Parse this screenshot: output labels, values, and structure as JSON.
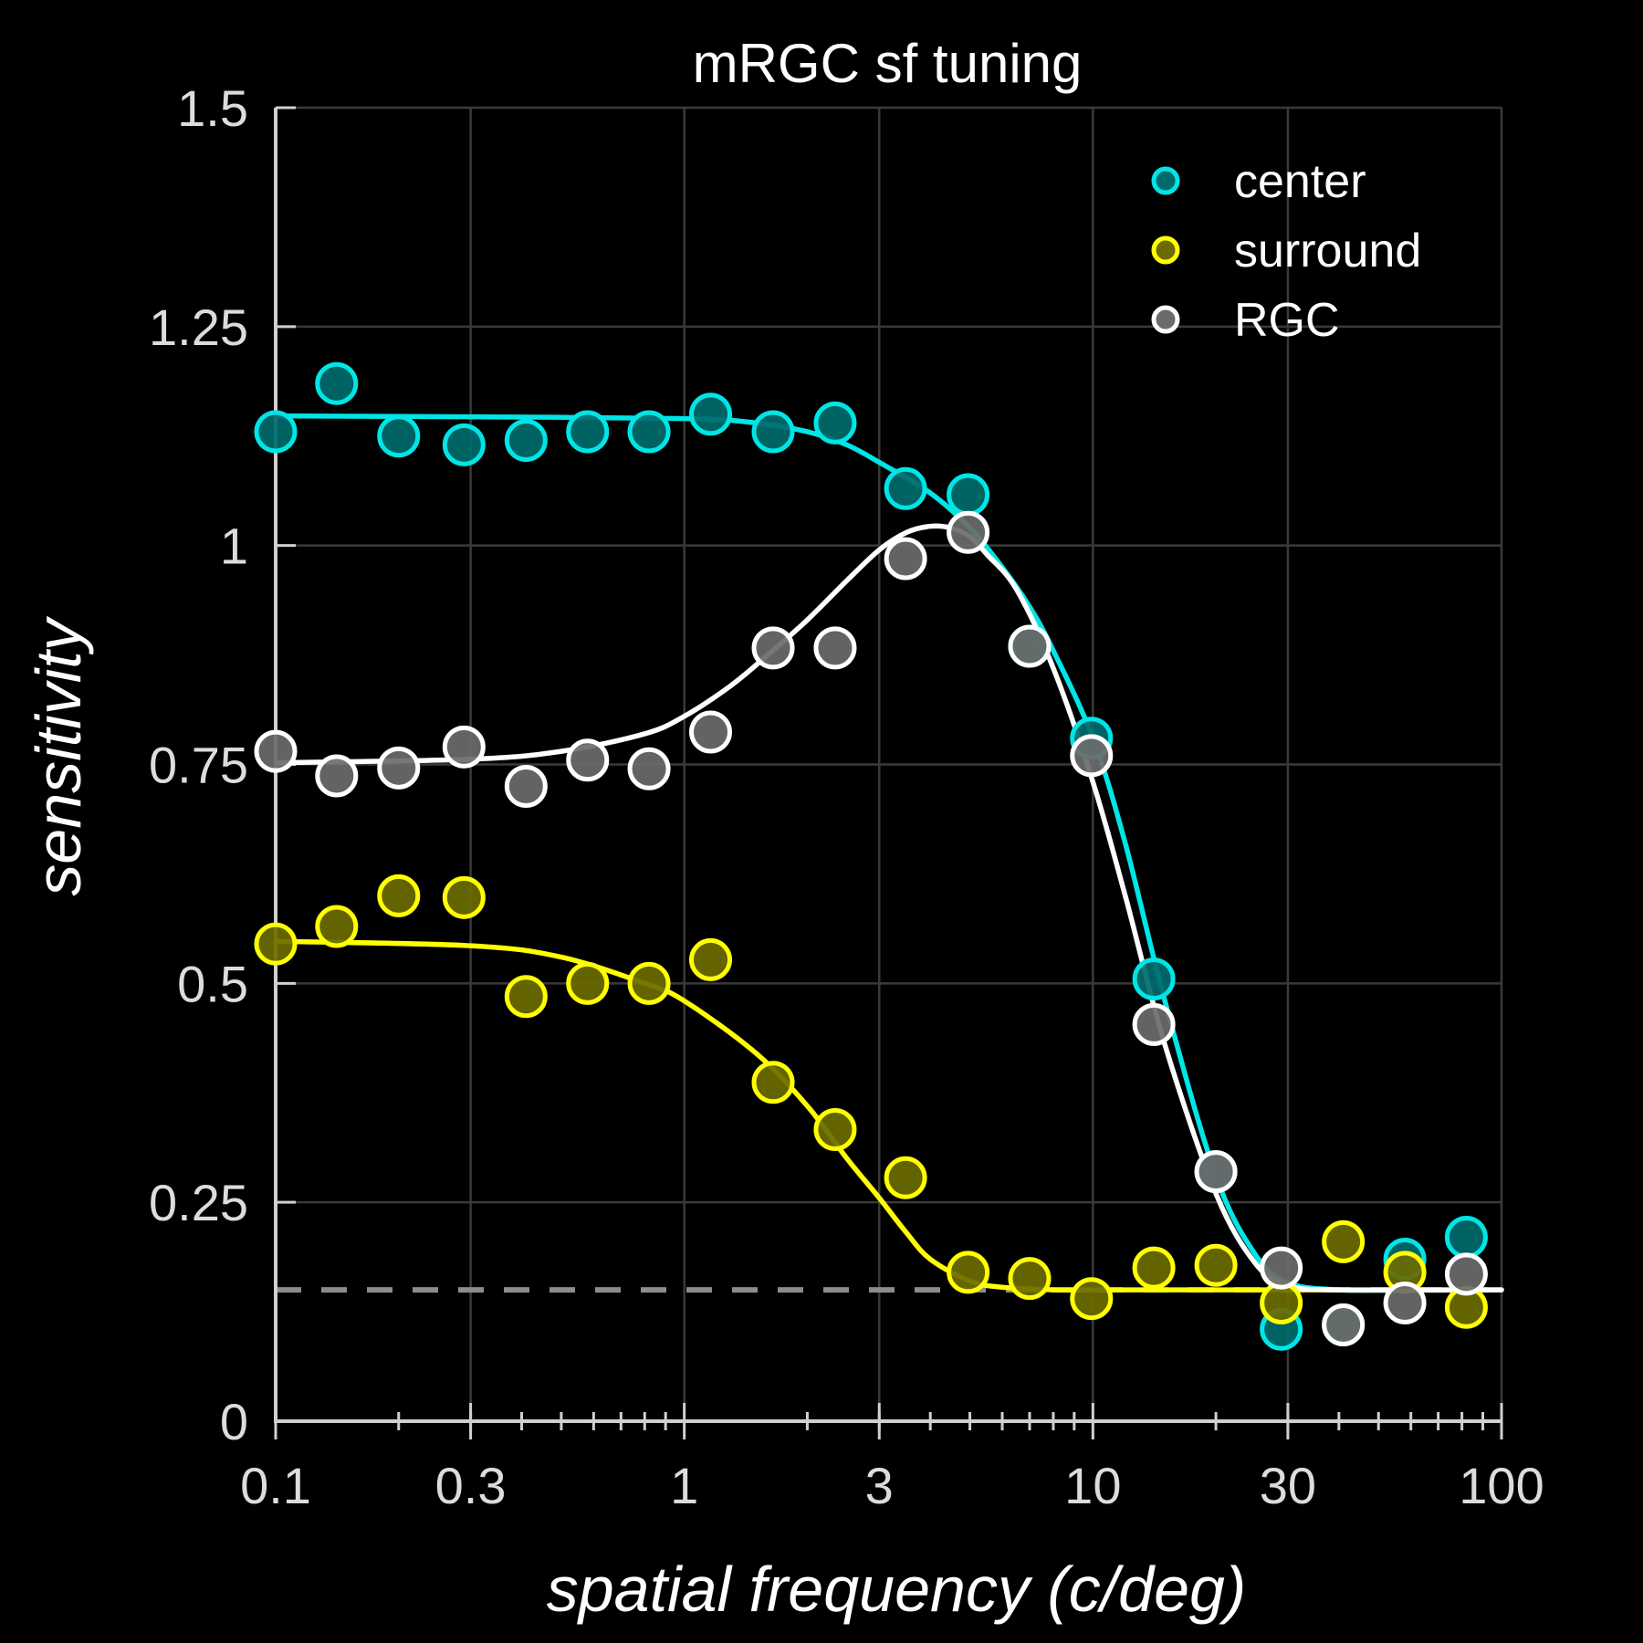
{
  "chart_data": {
    "type": "scatter",
    "title": "mRGC sf tuning",
    "xlabel": "spatial frequency (c/deg)",
    "ylabel": "sensitivity",
    "xscale": "log",
    "xlim": [
      0.1,
      100
    ],
    "ylim": [
      0,
      1.5
    ],
    "xticks": [
      {
        "value": 0.1,
        "label": "0.1"
      },
      {
        "value": 0.3,
        "label": "0.3"
      },
      {
        "value": 1,
        "label": "1"
      },
      {
        "value": 3,
        "label": "3"
      },
      {
        "value": 10,
        "label": "10"
      },
      {
        "value": 30,
        "label": "30"
      },
      {
        "value": 100,
        "label": "100"
      }
    ],
    "yticks": [
      {
        "value": 0,
        "label": "0"
      },
      {
        "value": 0.25,
        "label": "0.25"
      },
      {
        "value": 0.5,
        "label": "0.5"
      },
      {
        "value": 0.75,
        "label": "0.75"
      },
      {
        "value": 1,
        "label": "1"
      },
      {
        "value": 1.25,
        "label": "1.25"
      },
      {
        "value": 1.5,
        "label": "1.5"
      }
    ],
    "grid": true,
    "legend_position": "top-right",
    "baseline": {
      "y": 0.15,
      "color": "#8c8c8c",
      "style": "dashed"
    },
    "series": [
      {
        "name": "center",
        "color": "#00e5e5",
        "fill": "#006b6b",
        "x": [
          0.1,
          0.141,
          0.2,
          0.289,
          0.41,
          0.58,
          0.82,
          1.16,
          1.65,
          2.34,
          3.48,
          4.95,
          7.0,
          9.92,
          14.1,
          20.0,
          28.9,
          41.0,
          58.0,
          82.0
        ],
        "y": [
          1.13,
          1.185,
          1.125,
          1.115,
          1.12,
          1.13,
          1.13,
          1.15,
          1.13,
          1.14,
          1.065,
          1.058,
          0.885,
          0.78,
          0.505,
          0.285,
          0.105,
          0.11,
          0.185,
          0.21
        ]
      },
      {
        "name": "surround",
        "color": "#ffff00",
        "fill": "#6b6b00",
        "x": [
          0.1,
          0.141,
          0.2,
          0.289,
          0.41,
          0.58,
          0.82,
          1.16,
          1.65,
          2.34,
          3.48,
          4.95,
          7.0,
          9.92,
          14.1,
          20.0,
          28.9,
          41.0,
          58.0,
          82.0
        ],
        "y": [
          0.545,
          0.565,
          0.6,
          0.598,
          0.485,
          0.5,
          0.5,
          0.527,
          0.387,
          0.333,
          0.278,
          0.17,
          0.163,
          0.14,
          0.175,
          0.178,
          0.135,
          0.205,
          0.17,
          0.13
        ]
      },
      {
        "name": "RGC",
        "color": "#ffffff",
        "fill": "#6b6b6b",
        "x": [
          0.1,
          0.141,
          0.2,
          0.289,
          0.41,
          0.58,
          0.82,
          1.16,
          1.65,
          2.34,
          3.48,
          4.95,
          7.0,
          9.92,
          14.1,
          20.0,
          28.9,
          41.0,
          58.0,
          82.0
        ],
        "y": [
          0.765,
          0.737,
          0.746,
          0.77,
          0.725,
          0.755,
          0.745,
          0.787,
          0.883,
          0.883,
          0.985,
          1.015,
          0.885,
          0.76,
          0.453,
          0.285,
          0.175,
          0.11,
          0.135,
          0.168
        ]
      }
    ],
    "fits": [
      {
        "series": "center",
        "color": "#00e5e5",
        "x": [
          0.1,
          0.3,
          1.0,
          1.5,
          2.0,
          2.5,
          3.0,
          4.0,
          5.0,
          6.0,
          7.0,
          8.0,
          10.0,
          12.0,
          15.0,
          20.0,
          25.0,
          30.0,
          40.0,
          60.0,
          100.0
        ],
        "y": [
          1.148,
          1.147,
          1.145,
          1.14,
          1.13,
          1.115,
          1.095,
          1.06,
          1.02,
          0.975,
          0.93,
          0.88,
          0.78,
          0.66,
          0.48,
          0.28,
          0.19,
          0.158,
          0.15,
          0.15,
          0.15
        ]
      },
      {
        "series": "surround",
        "color": "#ffff00",
        "x": [
          0.1,
          0.3,
          0.5,
          0.8,
          1.0,
          1.5,
          2.0,
          2.5,
          3.0,
          3.5,
          4.0,
          5.0,
          6.0,
          8.0,
          10.0,
          20.0,
          100.0
        ],
        "y": [
          0.548,
          0.543,
          0.53,
          0.5,
          0.48,
          0.42,
          0.36,
          0.3,
          0.255,
          0.215,
          0.185,
          0.16,
          0.153,
          0.15,
          0.15,
          0.15,
          0.15
        ]
      },
      {
        "series": "RGC",
        "color": "#ffffff",
        "x": [
          0.1,
          0.3,
          0.5,
          0.8,
          1.0,
          1.3,
          1.6,
          2.0,
          2.5,
          3.0,
          3.5,
          4.0,
          4.5,
          5.0,
          5.5,
          6.5,
          8.0,
          10.0,
          12.0,
          15.0,
          20.0,
          25.0,
          30.0,
          40.0,
          100.0
        ],
        "y": [
          0.752,
          0.756,
          0.765,
          0.785,
          0.805,
          0.84,
          0.875,
          0.915,
          0.96,
          0.995,
          1.015,
          1.022,
          1.02,
          1.01,
          0.99,
          0.95,
          0.86,
          0.73,
          0.6,
          0.43,
          0.26,
          0.18,
          0.155,
          0.15,
          0.15
        ]
      }
    ]
  }
}
